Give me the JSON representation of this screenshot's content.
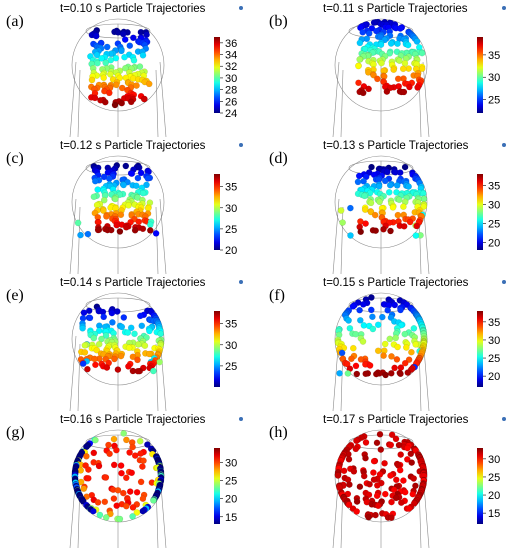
{
  "figure": {
    "panels": [
      {
        "letter": "(a)",
        "title": "t=0.10 s Particle Trajectories"
      },
      {
        "letter": "(b)",
        "title": "t=0.11 s Particle Trajectories"
      },
      {
        "letter": "(c)",
        "title": "t=0.12 s Particle Trajectories"
      },
      {
        "letter": "(d)",
        "title": "t=0.13 s Particle Trajectories"
      },
      {
        "letter": "(e)",
        "title": "t=0.14 s Particle Trajectories"
      },
      {
        "letter": "(f)",
        "title": "t=0.15 s Particle Trajectories"
      },
      {
        "letter": "(g)",
        "title": "t=0.16 s Particle Trajectories"
      },
      {
        "letter": "(h)",
        "title": "t=0.17 s Particle Trajectories"
      }
    ]
  },
  "chart_data": [
    {
      "type": "scatter",
      "title": "t=0.10 s Particle Trajectories",
      "colorbar": {
        "min": 24,
        "max": 37,
        "ticks": [
          24,
          26,
          28,
          30,
          32,
          34,
          36
        ],
        "colormap": "jet"
      }
    },
    {
      "type": "scatter",
      "title": "t=0.11 s Particle Trajectories",
      "colorbar": {
        "min": 22,
        "max": 39,
        "ticks": [
          25,
          30,
          35
        ],
        "colormap": "jet"
      }
    },
    {
      "type": "scatter",
      "title": "t=0.12 s Particle Trajectories",
      "colorbar": {
        "min": 20,
        "max": 38,
        "ticks": [
          20,
          25,
          30,
          35
        ],
        "colormap": "jet"
      }
    },
    {
      "type": "scatter",
      "title": "t=0.13 s Particle Trajectories",
      "colorbar": {
        "min": 18,
        "max": 38,
        "ticks": [
          20,
          25,
          30,
          35
        ],
        "colormap": "jet"
      }
    },
    {
      "type": "scatter",
      "title": "t=0.14 s Particle Trajectories",
      "colorbar": {
        "min": 20,
        "max": 38,
        "ticks": [
          25,
          30,
          35
        ],
        "colormap": "jet"
      }
    },
    {
      "type": "scatter",
      "title": "t=0.15 s Particle Trajectories",
      "colorbar": {
        "min": 17,
        "max": 38,
        "ticks": [
          20,
          25,
          30,
          35
        ],
        "colormap": "jet"
      }
    },
    {
      "type": "scatter",
      "title": "t=0.16 s Particle Trajectories",
      "colorbar": {
        "min": 13,
        "max": 34,
        "ticks": [
          15,
          20,
          25,
          30
        ],
        "colormap": "jet"
      }
    },
    {
      "type": "scatter",
      "title": "t=0.17 s Particle Trajectories",
      "colorbar": {
        "min": 12,
        "max": 33,
        "ticks": [
          15,
          20,
          25,
          30
        ],
        "colormap": "jet"
      }
    }
  ]
}
